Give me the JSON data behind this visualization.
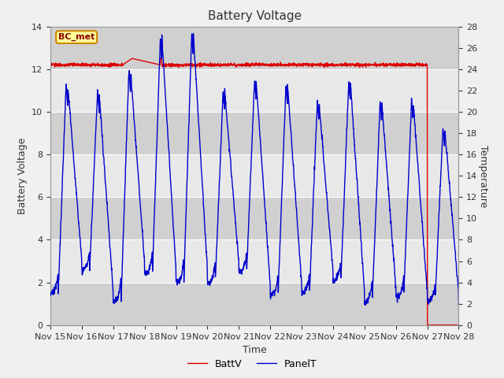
{
  "title": "Battery Voltage",
  "xlabel": "Time",
  "ylabel_left": "Battery Voltage",
  "ylabel_right": "Temperature",
  "annotation": "BC_met",
  "legend_labels": [
    "BattV",
    "PanelT"
  ],
  "x_tick_labels": [
    "Nov 15",
    "Nov 16",
    "Nov 17",
    "Nov 18",
    "Nov 19",
    "Nov 20",
    "Nov 21",
    "Nov 22",
    "Nov 23",
    "Nov 24",
    "Nov 25",
    "Nov 26",
    "Nov 27",
    "Nov 28"
  ],
  "ylim_left": [
    0,
    14
  ],
  "ylim_right": [
    0,
    28
  ],
  "batt_color": "#dd0000",
  "panel_color": "#0000cc",
  "fig_bg_color": "#f0f0f0",
  "plot_bg_color": "#e8e8e8",
  "band_color": "#d0d0d0",
  "grid_color": "#ffffff",
  "annotation_bg": "#ffff99",
  "annotation_border": "#cc8800",
  "annotation_text_color": "#880000",
  "title_fontsize": 11,
  "axis_label_fontsize": 9,
  "tick_fontsize": 8,
  "legend_fontsize": 9
}
